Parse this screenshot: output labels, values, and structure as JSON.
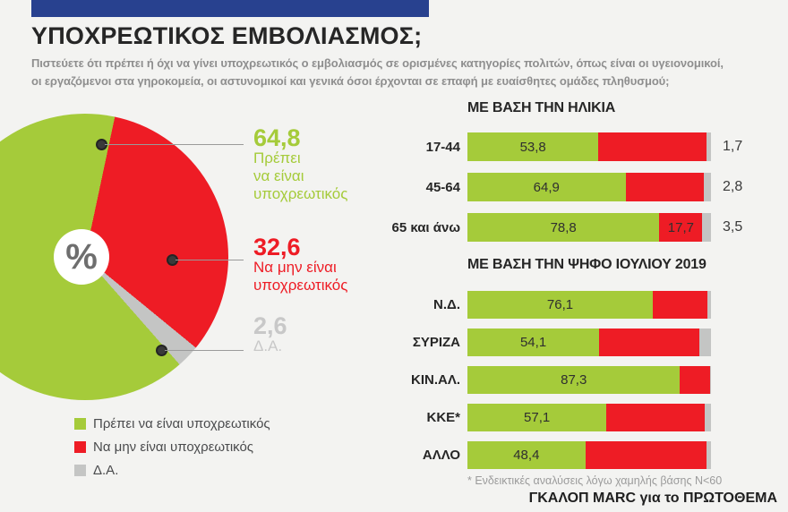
{
  "colors": {
    "background": "#f3f3f1",
    "header_bar": "#28418f",
    "green": "#a5cb3a",
    "red": "#ee1c25",
    "gray": "#c4c5c4",
    "gray_text": "#c8c8c8",
    "dark": "#262626",
    "subtitle_gray": "#8e8e8e"
  },
  "header": {
    "title": "ΥΠΟΧΡΕΩΤΙΚΟΣ ΕΜΒΟΛΙΑΣΜΟΣ;",
    "subtitle_line1": "Πιστεύετε ότι πρέπει ή όχι να γίνει υποχρεωτικός ο εμβολιασμός σε ορισμένες κατηγορίες πολιτών, όπως είναι οι υγειονομικοί,",
    "subtitle_line2": "οι εργαζόμενοι στα γηροκομεία, οι αστυνομικοί και γενικά όσοι έρχονται σε επαφή με ευαίσθητες ομάδες πληθυσμού;"
  },
  "pie": {
    "center_symbol": "%",
    "start_deg": 12,
    "slices": [
      {
        "name": "Να μην είναι υποχρεωτικός",
        "value": 32.6,
        "color": "#ee1c25"
      },
      {
        "name": "Δ.Α.",
        "value": 2.6,
        "color": "#c4c5c4"
      },
      {
        "name": "Πρέπει να είναι υποχρεωτικός",
        "value": 64.8,
        "color": "#a5cb3a"
      }
    ],
    "callouts": {
      "yes": {
        "value_label": "64,8",
        "lines": [
          "Πρέπει",
          "να είναι",
          "υποχρεωτικός"
        ]
      },
      "no": {
        "value_label": "32,6",
        "lines": [
          "Να μην είναι",
          "υποχρεωτικός"
        ]
      },
      "dk": {
        "value_label": "2,6",
        "lines": [
          "Δ.Α."
        ]
      }
    }
  },
  "legend": {
    "items": [
      {
        "label": "Πρέπει να είναι υποχρεωτικός",
        "color": "#a5cb3a"
      },
      {
        "label": "Να μην είναι υποχρεωτικός",
        "color": "#ee1c25"
      },
      {
        "label": "Δ.Α.",
        "color": "#c4c5c4"
      }
    ]
  },
  "charts": {
    "age": {
      "heading": "ΜΕ ΒΑΣΗ ΤΗΝ ΗΛΙΚΙΑ",
      "rows": [
        {
          "label": "17-44",
          "yes": 53.8,
          "no": 44.5,
          "dk": 1.7,
          "yes_label": "53,8",
          "no_label": "",
          "right_label": "1,7"
        },
        {
          "label": "45-64",
          "yes": 64.9,
          "no": 32.3,
          "dk": 2.8,
          "yes_label": "64,9",
          "no_label": "",
          "right_label": "2,8"
        },
        {
          "label": "65 και άνω",
          "yes": 78.8,
          "no": 17.7,
          "dk": 3.5,
          "yes_label": "78,8",
          "no_label": "17,7",
          "right_label": "3,5"
        }
      ]
    },
    "vote": {
      "heading": "ΜΕ ΒΑΣΗ ΤΗΝ ΨΗΦΟ ΙΟΥΛΙΟΥ 2019",
      "rows": [
        {
          "label": "Ν.Δ.",
          "yes": 76.1,
          "no": 22.4,
          "dk": 1.5,
          "yes_label": "76,1",
          "no_label": ""
        },
        {
          "label": "ΣΥΡΙΖΑ",
          "yes": 54.1,
          "no": 41.2,
          "dk": 4.7,
          "yes_label": "54,1",
          "no_label": ""
        },
        {
          "label": "ΚΙΝ.ΑΛ.",
          "yes": 87.3,
          "no": 12.4,
          "dk": 0.3,
          "yes_label": "87,3",
          "no_label": ""
        },
        {
          "label": "ΚΚΕ*",
          "yes": 57.1,
          "no": 40.3,
          "dk": 2.6,
          "yes_label": "57,1",
          "no_label": ""
        },
        {
          "label": "ΑΛΛΟ",
          "yes": 48.4,
          "no": 49.8,
          "dk": 1.8,
          "yes_label": "48,4",
          "no_label": ""
        }
      ]
    }
  },
  "footnote": "* Ενδεικτικές αναλύσεις λόγω χαμηλής βάσης N<60",
  "credit": "ΓΚΑΛΟΠ MARC για το ΠΡΩΤΟΘΕΜΑ",
  "chart_data": [
    {
      "type": "pie",
      "title": "ΥΠΟΧΡΕΩΤΙΚΟΣ ΕΜΒΟΛΙΑΣΜΟΣ;",
      "labels": [
        "Πρέπει να είναι υποχρεωτικός",
        "Να μην είναι υποχρεωτικός",
        "Δ.Α."
      ],
      "values": [
        64.8,
        32.6,
        2.6
      ],
      "colors": [
        "#a5cb3a",
        "#ee1c25",
        "#c4c5c4"
      ],
      "legend_position": "bottom-left"
    },
    {
      "type": "bar",
      "orientation": "horizontal",
      "stacked": true,
      "title": "ΜΕ ΒΑΣΗ ΤΗΝ ΗΛΙΚΙΑ",
      "categories": [
        "17-44",
        "45-64",
        "65 και άνω"
      ],
      "series": [
        {
          "name": "Πρέπει να είναι υποχρεωτικός",
          "values": [
            53.8,
            64.9,
            78.8
          ]
        },
        {
          "name": "Να μην είναι υποχρεωτικός",
          "values": [
            44.5,
            32.3,
            17.7
          ]
        },
        {
          "name": "Δ.Α.",
          "values": [
            1.7,
            2.8,
            3.5
          ]
        }
      ],
      "xlim": [
        0,
        100
      ],
      "grid": false
    },
    {
      "type": "bar",
      "orientation": "horizontal",
      "stacked": true,
      "title": "ΜΕ ΒΑΣΗ ΤΗΝ ΨΗΦΟ ΙΟΥΛΙΟΥ 2019",
      "categories": [
        "Ν.Δ.",
        "ΣΥΡΙΖΑ",
        "ΚΙΝ.ΑΛ.",
        "ΚΚΕ*",
        "ΑΛΛΟ"
      ],
      "series": [
        {
          "name": "Πρέπει να είναι υποχρεωτικός",
          "values": [
            76.1,
            54.1,
            87.3,
            57.1,
            48.4
          ]
        },
        {
          "name": "Να μην είναι υποχρεωτικός (estimated from bar lengths)",
          "values": [
            22.4,
            41.2,
            12.4,
            40.3,
            49.8
          ]
        },
        {
          "name": "Δ.Α. (estimated from bar lengths)",
          "values": [
            1.5,
            4.7,
            0.3,
            2.6,
            1.8
          ]
        }
      ],
      "xlim": [
        0,
        100
      ],
      "grid": false
    }
  ]
}
